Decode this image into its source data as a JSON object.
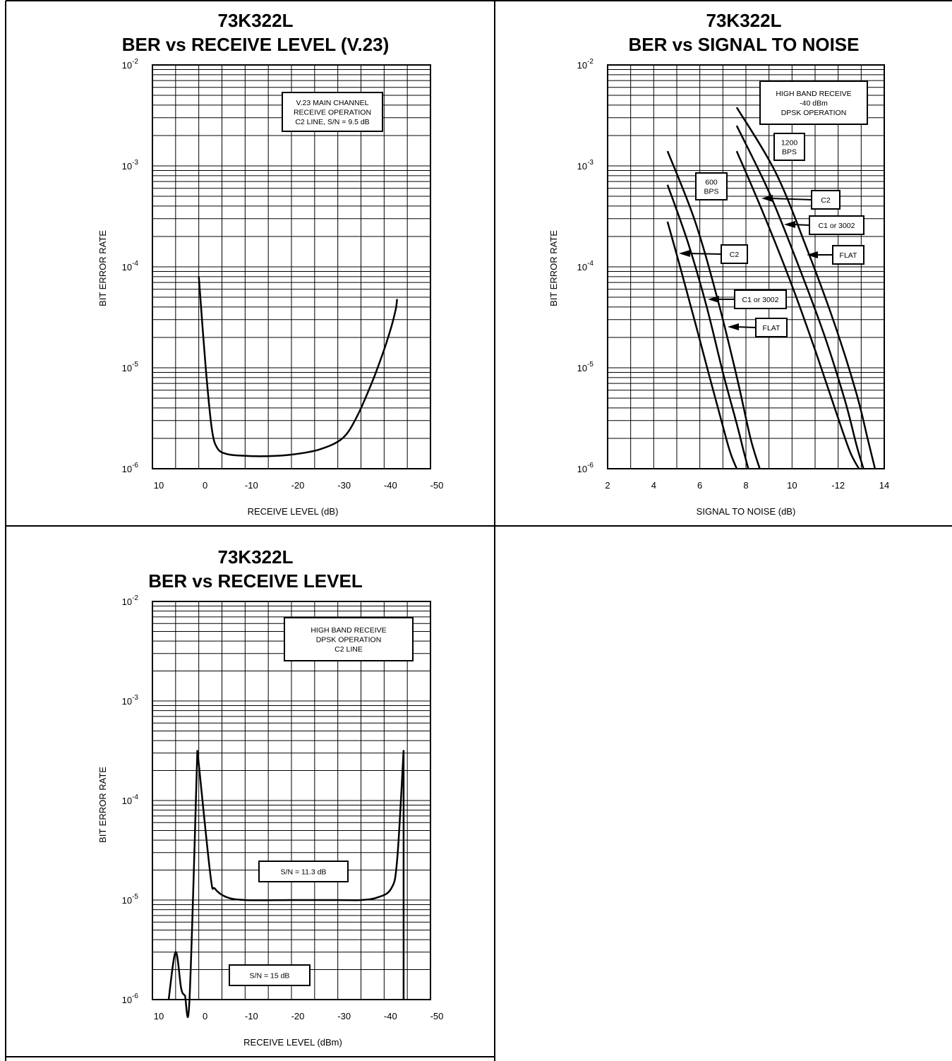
{
  "chart_data": [
    {
      "type": "line",
      "title_line1": "73K322L",
      "title_line2": "BER vs RECEIVE LEVEL (V.23)",
      "ylabel": "BIT ERROR RATE",
      "xlabel": "RECEIVE LEVEL (dB)",
      "x_ticks": [
        "10",
        "0",
        "-10",
        "-20",
        "-30",
        "-40",
        "-50"
      ],
      "y_tick_base": "10",
      "y_tick_exps": [
        "-2",
        "-3",
        "-4",
        "-5",
        "-6"
      ],
      "xlim": [
        10,
        -50
      ],
      "ylim": [
        1e-06,
        0.01
      ],
      "yscale": "log",
      "grid": true,
      "annotations": [
        {
          "lines": [
            "V.23 MAIN CHANNEL",
            "RECEIVE OPERATION",
            "C2 LINE, S/N = 9.5 dB"
          ]
        }
      ],
      "series": [
        {
          "x": [
            0,
            -1.5,
            -2.8,
            -4,
            -6,
            -9,
            -14,
            -20,
            -26,
            -31,
            -34,
            -37,
            -39.5,
            -41.5,
            -42.5,
            -42.8
          ],
          "y": [
            8e-05,
            1e-05,
            2.5e-06,
            1.6e-06,
            1.4e-06,
            1.35e-06,
            1.33e-06,
            1.38e-06,
            1.55e-06,
            2e-06,
            3.2e-06,
            6.5e-06,
            1.3e-05,
            2.5e-05,
            3.8e-05,
            4.8e-05
          ]
        }
      ]
    },
    {
      "type": "line",
      "title_line1": "73K322L",
      "title_line2": "BER vs SIGNAL TO NOISE",
      "ylabel": "BIT ERROR RATE",
      "xlabel": "SIGNAL TO NOISE (dB)",
      "x_ticks": [
        "2",
        "4",
        "6",
        "8",
        "10",
        "-12",
        "14"
      ],
      "y_tick_base": "10",
      "y_tick_exps": [
        "-2",
        "-3",
        "-4",
        "-5",
        "-6"
      ],
      "xlim": [
        2,
        14
      ],
      "ylim": [
        1e-06,
        0.01
      ],
      "yscale": "log",
      "grid": true,
      "annotations": [
        {
          "lines": [
            "HIGH BAND RECEIVE",
            "-40 dBm",
            "DPSK OPERATION"
          ]
        },
        {
          "lines": [
            "1200",
            "BPS"
          ]
        },
        {
          "lines": [
            "600",
            "BPS"
          ]
        },
        {
          "lines": [
            "C2"
          ]
        },
        {
          "lines": [
            "C1 or 3002"
          ]
        },
        {
          "lines": [
            "FLAT"
          ]
        },
        {
          "lines": [
            "C2"
          ]
        },
        {
          "lines": [
            "C1 or 3002"
          ]
        },
        {
          "lines": [
            "FLAT"
          ]
        }
      ],
      "series": [
        {
          "x": [
            4.6,
            5.2,
            5.8,
            6.4,
            6.9,
            7.3,
            7.6
          ],
          "y": [
            0.00028,
            9e-05,
            2.8e-05,
            8.5e-06,
            3.2e-06,
            1.5e-06,
            1e-06
          ]
        },
        {
          "x": [
            4.6,
            5.5,
            6.3,
            7.0,
            7.6,
            7.9,
            8.1
          ],
          "y": [
            0.00065,
            0.00017,
            4e-05,
            9e-06,
            2.8e-06,
            1.5e-06,
            1e-06
          ]
        },
        {
          "x": [
            4.6,
            5.8,
            6.8,
            7.6,
            8.2,
            8.6
          ],
          "y": [
            0.0014,
            0.00028,
            4.5e-05,
            8.2e-06,
            2e-06,
            1e-06
          ]
        },
        {
          "x": [
            7.6,
            8.8,
            10.0,
            11.0,
            11.9,
            12.5,
            12.9
          ],
          "y": [
            0.0014,
            0.00032,
            6.5e-05,
            1.5e-05,
            3.7e-06,
            1.5e-06,
            1e-06
          ]
        },
        {
          "x": [
            7.6,
            9.0,
            10.3,
            11.4,
            12.3,
            12.8,
            13.1
          ],
          "y": [
            0.0025,
            0.00055,
            0.0001,
            2.1e-05,
            4.7e-06,
            1.7e-06,
            1e-06
          ]
        },
        {
          "x": [
            7.6,
            9.3,
            10.7,
            11.9,
            12.8,
            13.3,
            13.6
          ],
          "y": [
            0.0038,
            0.00085,
            0.00014,
            2.5e-05,
            5.5e-06,
            1.9e-06,
            1e-06
          ]
        }
      ]
    },
    {
      "type": "line",
      "title_line1": "73K322L",
      "title_line2": "BER vs RECEIVE LEVEL",
      "ylabel": "BIT ERROR RATE",
      "xlabel": "RECEIVE LEVEL (dBm)",
      "x_ticks": [
        "10",
        "0",
        "-10",
        "-20",
        "-30",
        "-40",
        "-50"
      ],
      "y_tick_base": "10",
      "y_tick_exps": [
        "-2",
        "-3",
        "-4",
        "-5",
        "-6"
      ],
      "xlim": [
        10,
        -50
      ],
      "ylim": [
        1e-06,
        0.01
      ],
      "yscale": "log",
      "grid": true,
      "annotations": [
        {
          "lines": [
            "HIGH BAND RECEIVE",
            "DPSK OPERATION",
            "C2 LINE"
          ]
        },
        {
          "lines": [
            "S/N = 11.3 dB"
          ]
        },
        {
          "lines": [
            "S/N = 15 dB"
          ]
        }
      ],
      "series": [
        {
          "x": [
            0.3,
            -2.5,
            -3.5,
            -6,
            -10,
            -20,
            -30,
            -35,
            -38.5,
            -41.5,
            -42.8,
            -44.2
          ],
          "y": [
            0.00032,
            1.8e-05,
            1.3e-05,
            1.07e-05,
            1e-05,
            1e-05,
            1e-05,
            1e-05,
            1.06e-05,
            1.3e-05,
            2.5e-05,
            0.00032
          ]
        },
        {
          "x": [
            0.3,
            2.0,
            3.0,
            3.8,
            5.0,
            6.5
          ],
          "y": [
            0.00032,
            1e-06,
            1.1e-06,
            1.3e-06,
            3e-06,
            1e-06
          ]
        },
        {
          "x": [
            -44.2,
            -44.2
          ],
          "y": [
            0.00032,
            1e-06
          ]
        }
      ]
    }
  ]
}
